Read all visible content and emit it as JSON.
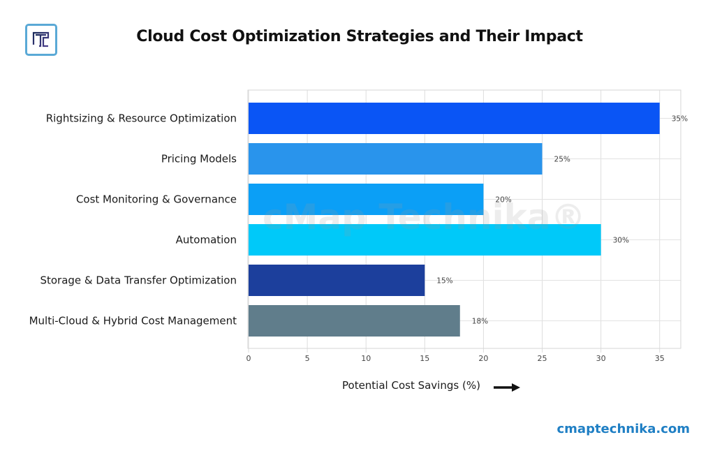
{
  "header": {
    "title": "Cloud Cost Optimization Strategies and Their Impact",
    "logo_icon": "technika-t-logo-icon"
  },
  "watermark": "cMap Technika®",
  "footer": {
    "site": "cmaptechnika.com"
  },
  "chart_data": {
    "type": "bar",
    "orientation": "horizontal",
    "title": "Cloud Cost Optimization Strategies and Their Impact",
    "xlabel": "Potential Cost Savings (%)",
    "ylabel": "",
    "xlim": [
      0,
      36.8
    ],
    "xticks": [
      0,
      5,
      10,
      15,
      20,
      25,
      30,
      35
    ],
    "grid": true,
    "legend": "none",
    "categories": [
      "Rightsizing & Resource Optimization",
      "Pricing Models",
      "Cost Monitoring & Governance",
      "Automation",
      "Storage & Data Transfer Optimization",
      "Multi-Cloud & Hybrid Cost Management"
    ],
    "values": [
      35,
      25,
      20,
      30,
      15,
      18
    ],
    "data_labels": [
      "35%",
      "25%",
      "20%",
      "30%",
      "15%",
      "18%"
    ],
    "colors": [
      "#0a55f5",
      "#2994ec",
      "#0b9ff6",
      "#00c9f9",
      "#1c3f9c",
      "#607d8b"
    ]
  }
}
